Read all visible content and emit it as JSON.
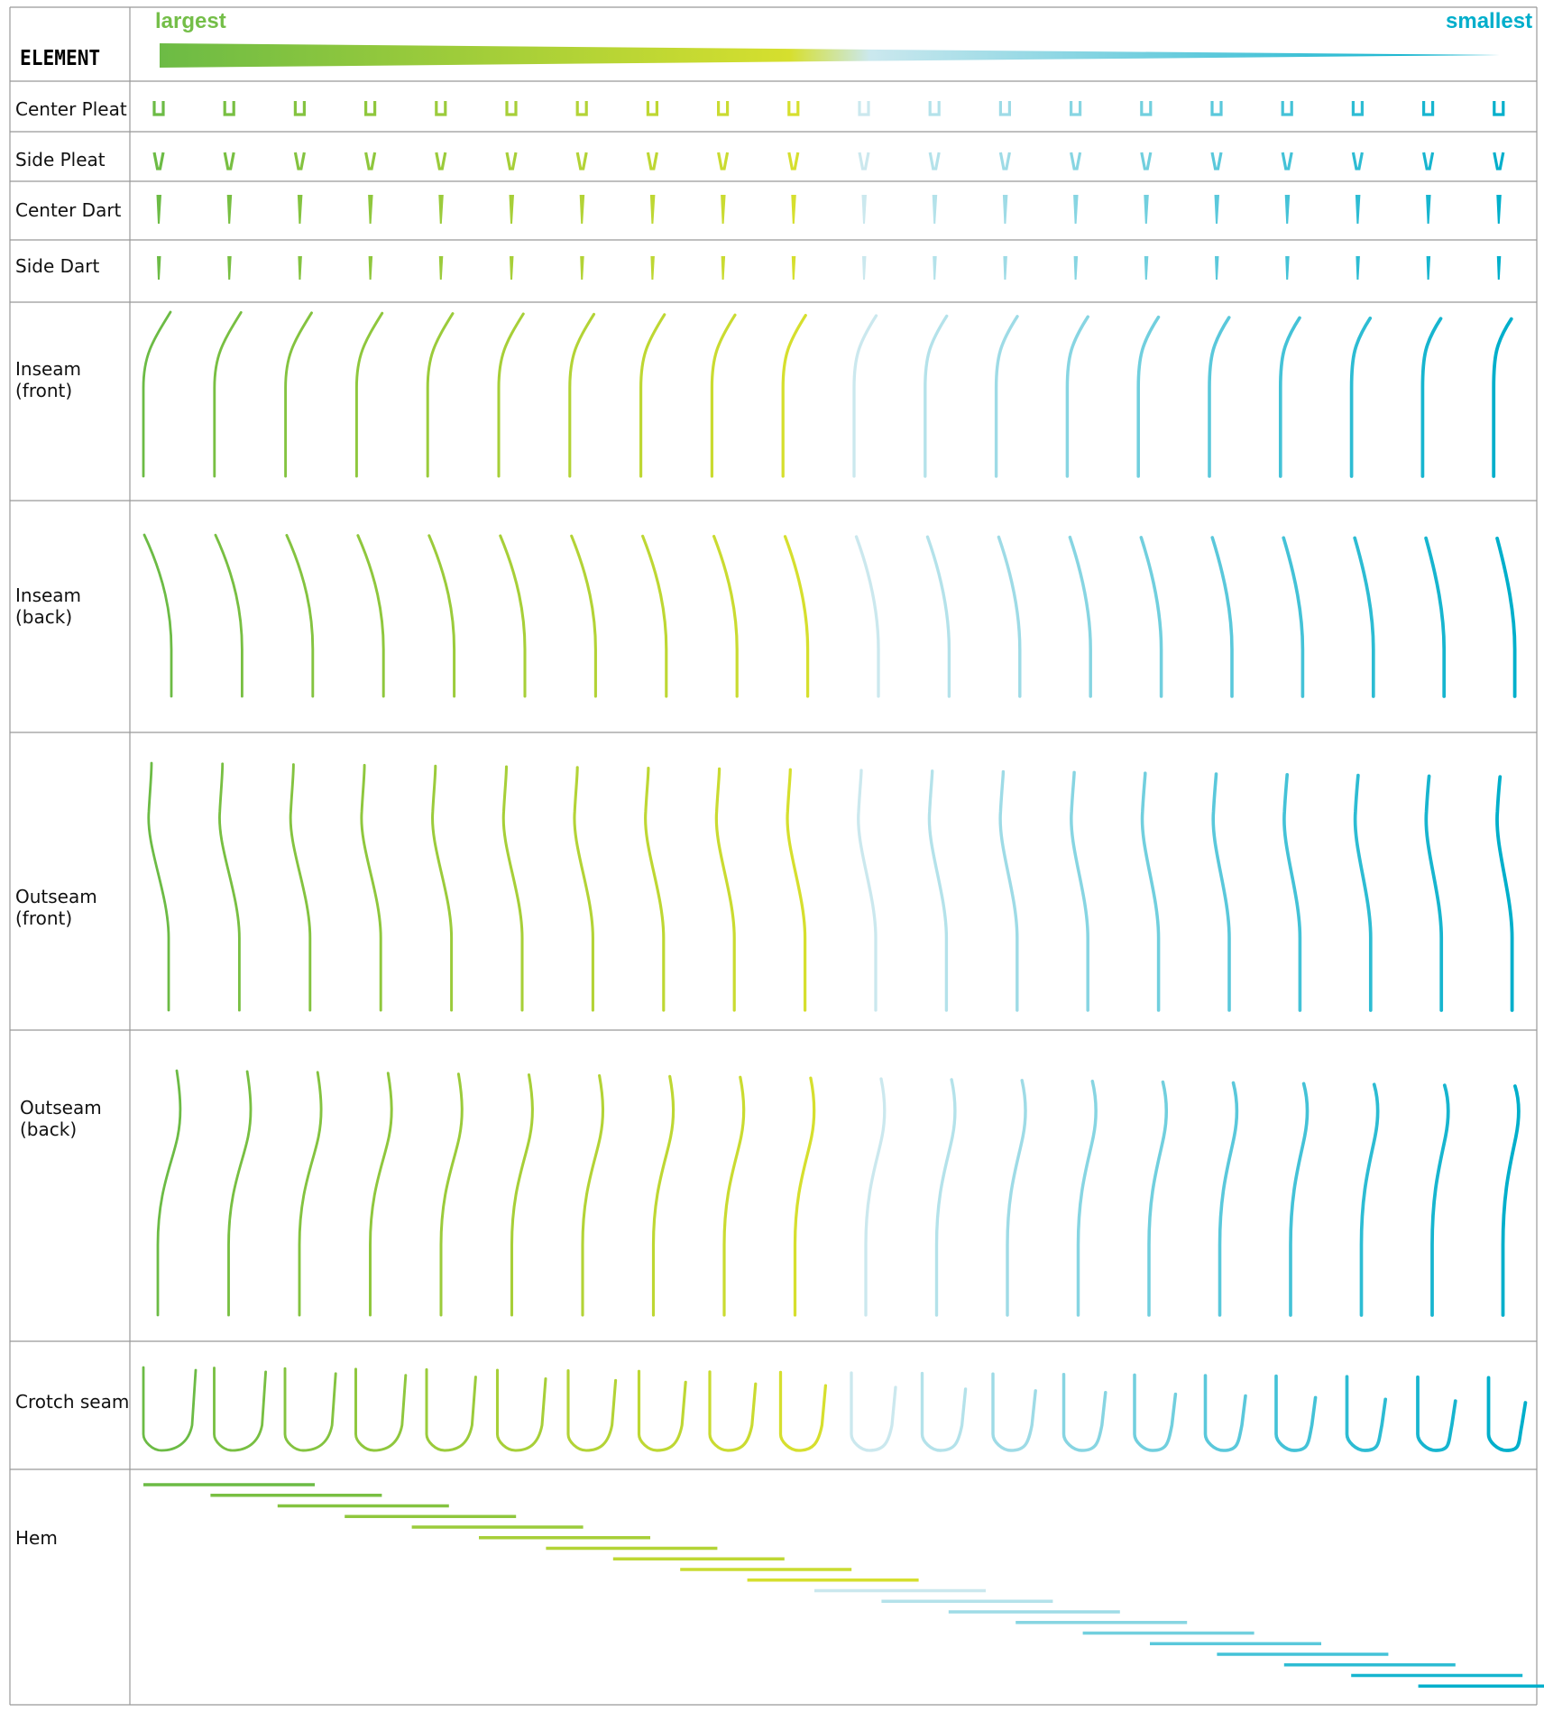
{
  "header": {
    "element_label": "ELEMENT",
    "largest_label": "largest",
    "smallest_label": "smallest"
  },
  "colors": {
    "largest": "#6CBB45",
    "mid": "#D6DF2E",
    "light_blue": "#CBE8EE",
    "smallest": "#00AFCB",
    "grid": "#999999"
  },
  "sizes_per_element": 20,
  "rows": [
    {
      "label": "Center Pleat"
    },
    {
      "label": "Side Pleat"
    },
    {
      "label": "Center Dart"
    },
    {
      "label": "Side Dart"
    },
    {
      "label": "Inseam\n(front)"
    },
    {
      "label": "Inseam\n(back)"
    },
    {
      "label": "Outseam\n(front)"
    },
    {
      "label": "Outseam\n(back)"
    },
    {
      "label": "Crotch seam"
    },
    {
      "label": "Hem"
    }
  ]
}
